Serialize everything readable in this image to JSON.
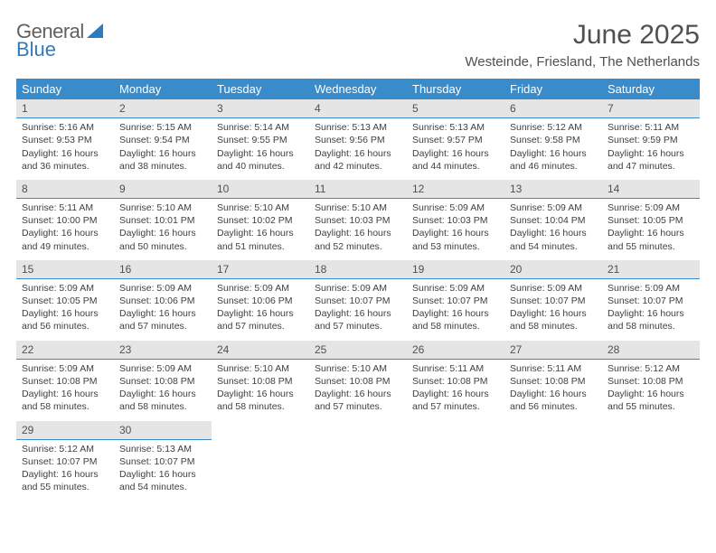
{
  "logo": {
    "general": "General",
    "blue": "Blue"
  },
  "title": "June 2025",
  "subtitle": "Westeinde, Friesland, The Netherlands",
  "header_bg": "#3a8bc9",
  "day_headers": [
    "Sunday",
    "Monday",
    "Tuesday",
    "Wednesday",
    "Thursday",
    "Friday",
    "Saturday"
  ],
  "labels": {
    "sunrise": "Sunrise:",
    "sunset": "Sunset:",
    "daylight": "Daylight:"
  },
  "days": [
    {
      "n": 1,
      "sr": "5:16 AM",
      "ss": "9:53 PM",
      "dl": "16 hours and 36 minutes."
    },
    {
      "n": 2,
      "sr": "5:15 AM",
      "ss": "9:54 PM",
      "dl": "16 hours and 38 minutes."
    },
    {
      "n": 3,
      "sr": "5:14 AM",
      "ss": "9:55 PM",
      "dl": "16 hours and 40 minutes."
    },
    {
      "n": 4,
      "sr": "5:13 AM",
      "ss": "9:56 PM",
      "dl": "16 hours and 42 minutes."
    },
    {
      "n": 5,
      "sr": "5:13 AM",
      "ss": "9:57 PM",
      "dl": "16 hours and 44 minutes."
    },
    {
      "n": 6,
      "sr": "5:12 AM",
      "ss": "9:58 PM",
      "dl": "16 hours and 46 minutes."
    },
    {
      "n": 7,
      "sr": "5:11 AM",
      "ss": "9:59 PM",
      "dl": "16 hours and 47 minutes."
    },
    {
      "n": 8,
      "sr": "5:11 AM",
      "ss": "10:00 PM",
      "dl": "16 hours and 49 minutes."
    },
    {
      "n": 9,
      "sr": "5:10 AM",
      "ss": "10:01 PM",
      "dl": "16 hours and 50 minutes."
    },
    {
      "n": 10,
      "sr": "5:10 AM",
      "ss": "10:02 PM",
      "dl": "16 hours and 51 minutes."
    },
    {
      "n": 11,
      "sr": "5:10 AM",
      "ss": "10:03 PM",
      "dl": "16 hours and 52 minutes."
    },
    {
      "n": 12,
      "sr": "5:09 AM",
      "ss": "10:03 PM",
      "dl": "16 hours and 53 minutes."
    },
    {
      "n": 13,
      "sr": "5:09 AM",
      "ss": "10:04 PM",
      "dl": "16 hours and 54 minutes."
    },
    {
      "n": 14,
      "sr": "5:09 AM",
      "ss": "10:05 PM",
      "dl": "16 hours and 55 minutes."
    },
    {
      "n": 15,
      "sr": "5:09 AM",
      "ss": "10:05 PM",
      "dl": "16 hours and 56 minutes."
    },
    {
      "n": 16,
      "sr": "5:09 AM",
      "ss": "10:06 PM",
      "dl": "16 hours and 57 minutes."
    },
    {
      "n": 17,
      "sr": "5:09 AM",
      "ss": "10:06 PM",
      "dl": "16 hours and 57 minutes."
    },
    {
      "n": 18,
      "sr": "5:09 AM",
      "ss": "10:07 PM",
      "dl": "16 hours and 57 minutes."
    },
    {
      "n": 19,
      "sr": "5:09 AM",
      "ss": "10:07 PM",
      "dl": "16 hours and 58 minutes."
    },
    {
      "n": 20,
      "sr": "5:09 AM",
      "ss": "10:07 PM",
      "dl": "16 hours and 58 minutes."
    },
    {
      "n": 21,
      "sr": "5:09 AM",
      "ss": "10:07 PM",
      "dl": "16 hours and 58 minutes."
    },
    {
      "n": 22,
      "sr": "5:09 AM",
      "ss": "10:08 PM",
      "dl": "16 hours and 58 minutes."
    },
    {
      "n": 23,
      "sr": "5:09 AM",
      "ss": "10:08 PM",
      "dl": "16 hours and 58 minutes."
    },
    {
      "n": 24,
      "sr": "5:10 AM",
      "ss": "10:08 PM",
      "dl": "16 hours and 58 minutes."
    },
    {
      "n": 25,
      "sr": "5:10 AM",
      "ss": "10:08 PM",
      "dl": "16 hours and 57 minutes."
    },
    {
      "n": 26,
      "sr": "5:11 AM",
      "ss": "10:08 PM",
      "dl": "16 hours and 57 minutes."
    },
    {
      "n": 27,
      "sr": "5:11 AM",
      "ss": "10:08 PM",
      "dl": "16 hours and 56 minutes."
    },
    {
      "n": 28,
      "sr": "5:12 AM",
      "ss": "10:08 PM",
      "dl": "16 hours and 55 minutes."
    },
    {
      "n": 29,
      "sr": "5:12 AM",
      "ss": "10:07 PM",
      "dl": "16 hours and 55 minutes."
    },
    {
      "n": 30,
      "sr": "5:13 AM",
      "ss": "10:07 PM",
      "dl": "16 hours and 54 minutes."
    }
  ],
  "first_weekday": 0,
  "total_cells": 35
}
